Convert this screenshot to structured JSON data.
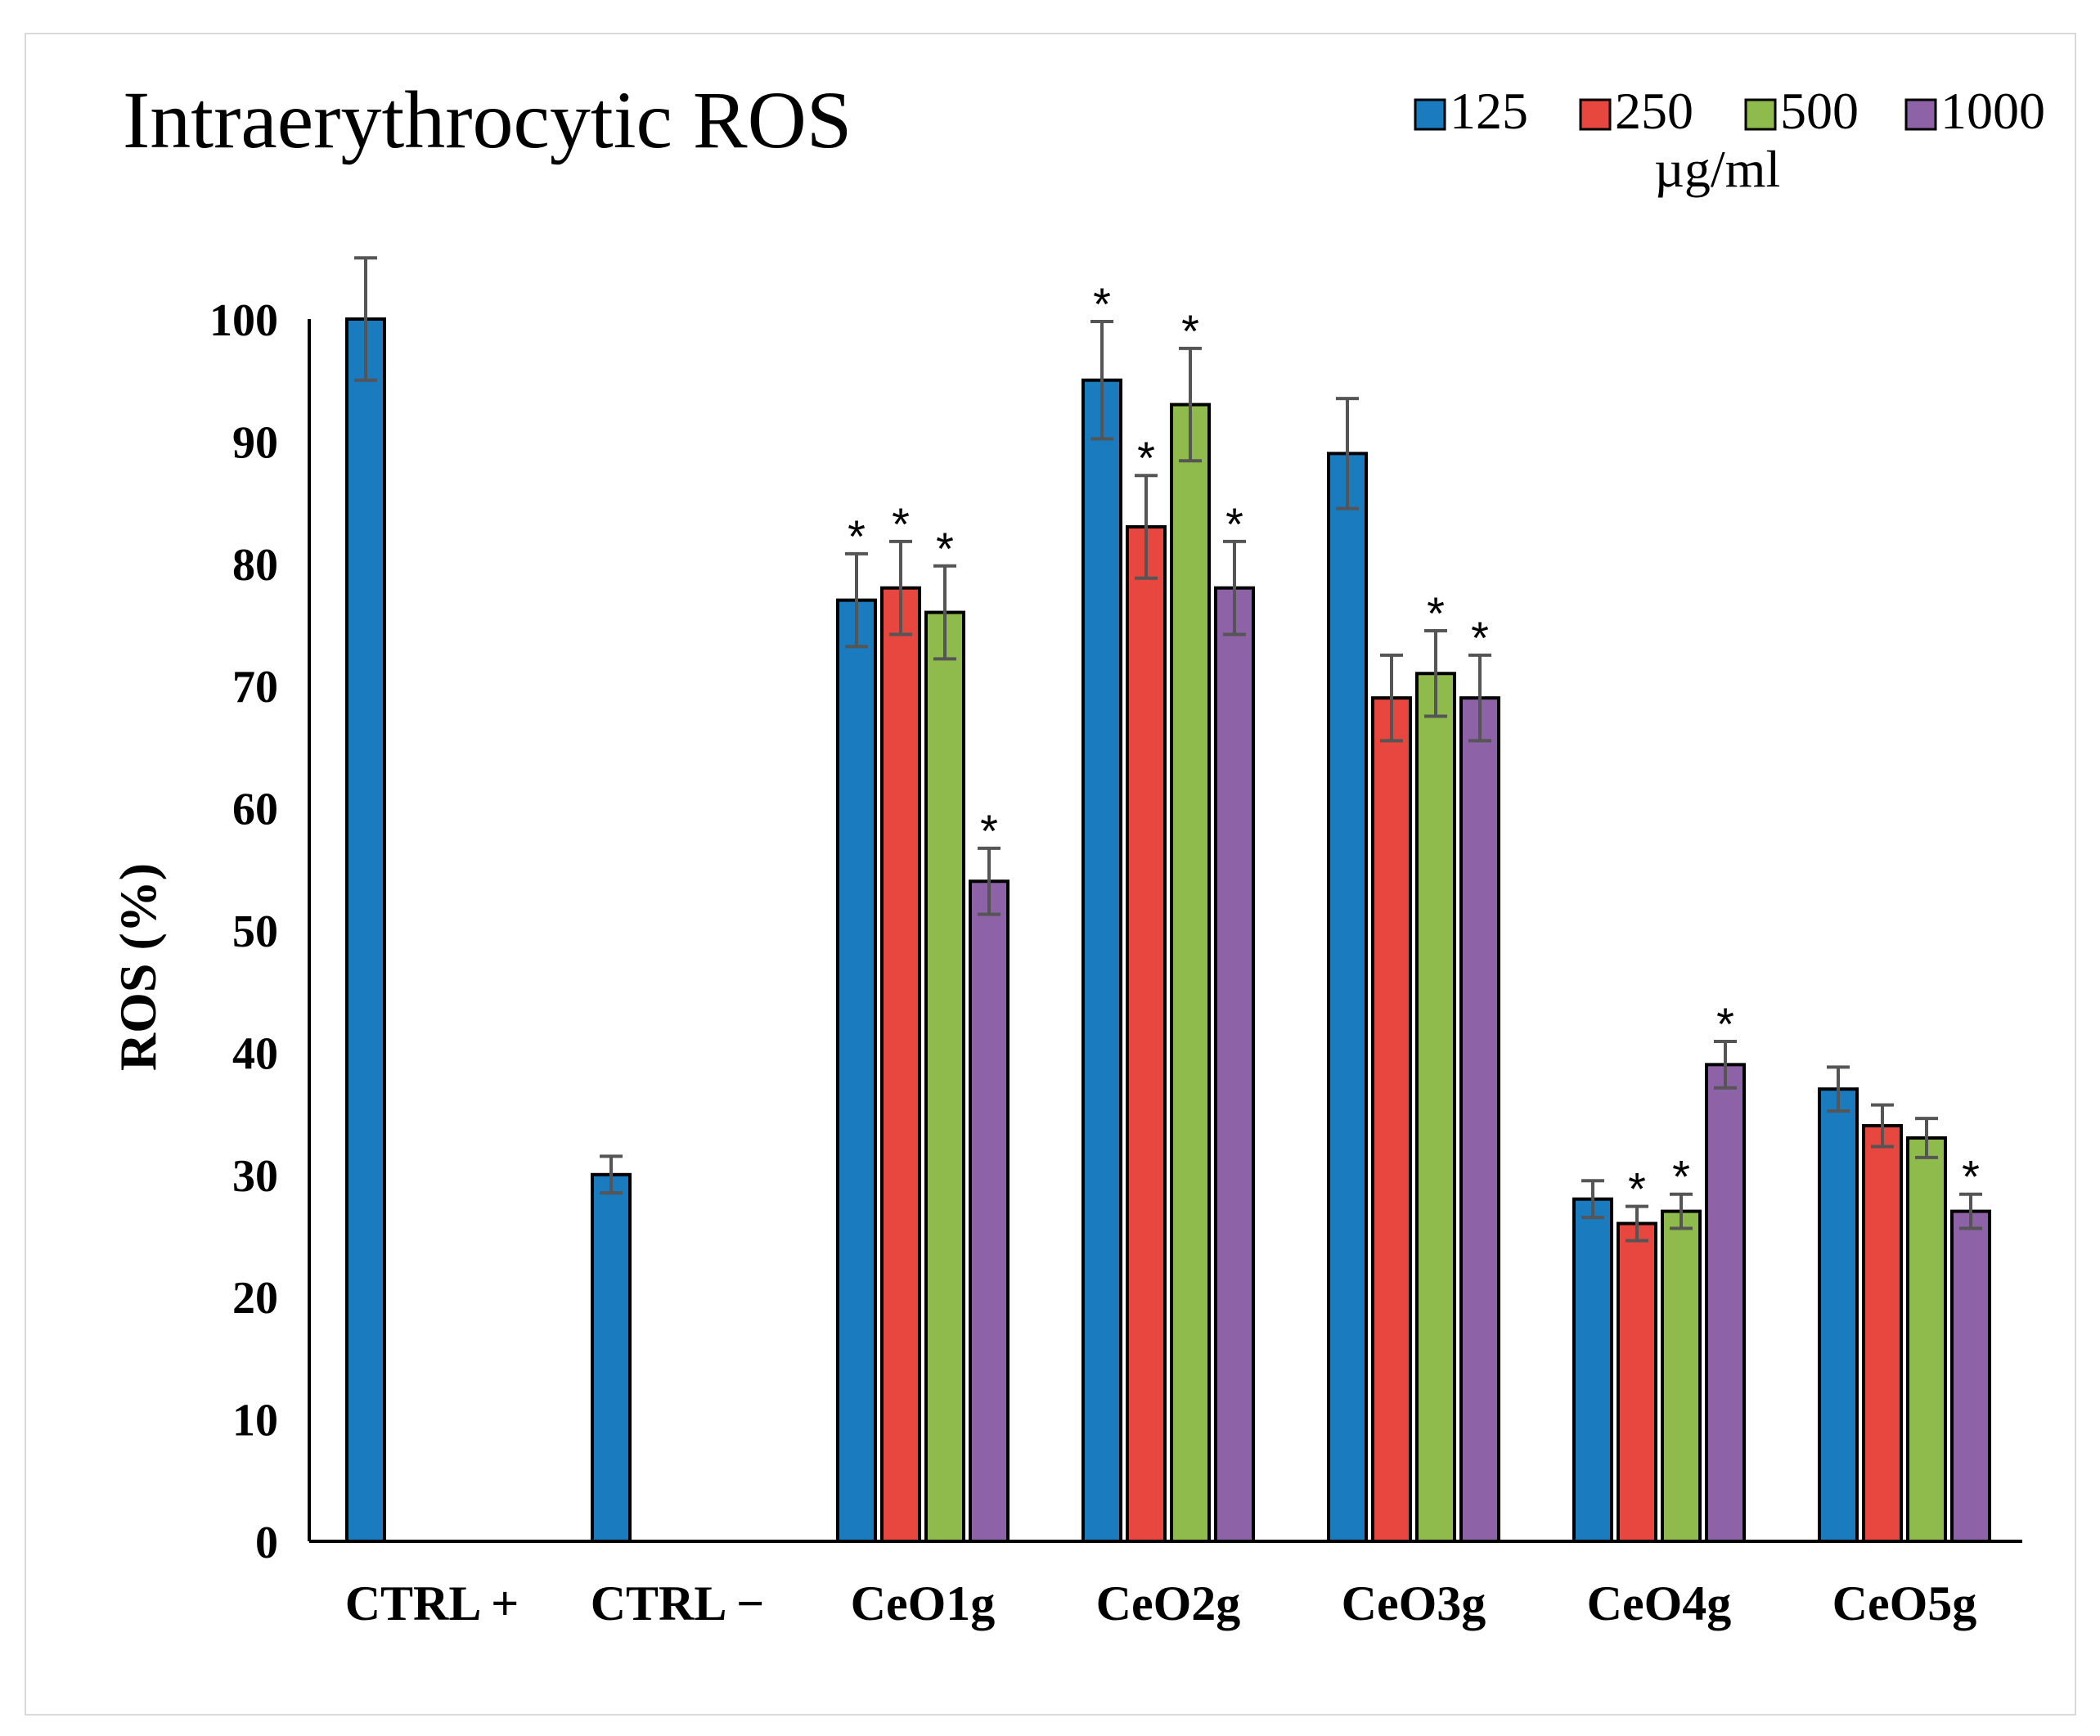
{
  "chart_data": {
    "type": "bar",
    "title": "Intraerythrocytic ROS",
    "xlabel": "",
    "ylabel": "ROS (%)",
    "ylim": [
      0,
      100
    ],
    "yticks": [
      0,
      10,
      20,
      30,
      40,
      50,
      60,
      70,
      80,
      90,
      100
    ],
    "grid": false,
    "legend_position": "top-right",
    "legend_unit": "µg/ml",
    "categories": [
      "CTRL +",
      "CTRL −",
      "CeO1g",
      "CeO2g",
      "CeO3g",
      "CeO4g",
      "CeO5g"
    ],
    "series": [
      {
        "name": "125",
        "color": "#1a7bbf",
        "values": [
          100,
          30,
          77,
          95,
          89,
          28,
          37
        ],
        "errors": [
          5,
          1.5,
          3.8,
          4.8,
          4.5,
          1.5,
          1.8
        ],
        "significant": [
          false,
          false,
          true,
          true,
          false,
          false,
          false
        ]
      },
      {
        "name": "250",
        "color": "#e8473f",
        "values": [
          null,
          null,
          78,
          83,
          69,
          26,
          34
        ],
        "errors": [
          null,
          null,
          3.8,
          4.2,
          3.5,
          1.4,
          1.7
        ],
        "significant": [
          false,
          false,
          true,
          true,
          false,
          true,
          false
        ]
      },
      {
        "name": "500",
        "color": "#8fbb4d",
        "values": [
          null,
          null,
          76,
          93,
          71,
          27,
          33
        ],
        "errors": [
          null,
          null,
          3.8,
          4.6,
          3.5,
          1.4,
          1.6
        ],
        "significant": [
          false,
          false,
          true,
          true,
          true,
          true,
          false
        ]
      },
      {
        "name": "1000",
        "color": "#8e62a6",
        "values": [
          null,
          null,
          54,
          78,
          69,
          39,
          27
        ],
        "errors": [
          null,
          null,
          2.7,
          3.8,
          3.5,
          1.9,
          1.4
        ],
        "significant": [
          false,
          false,
          true,
          true,
          true,
          true,
          true
        ]
      }
    ],
    "annotation_symbol": "*"
  }
}
